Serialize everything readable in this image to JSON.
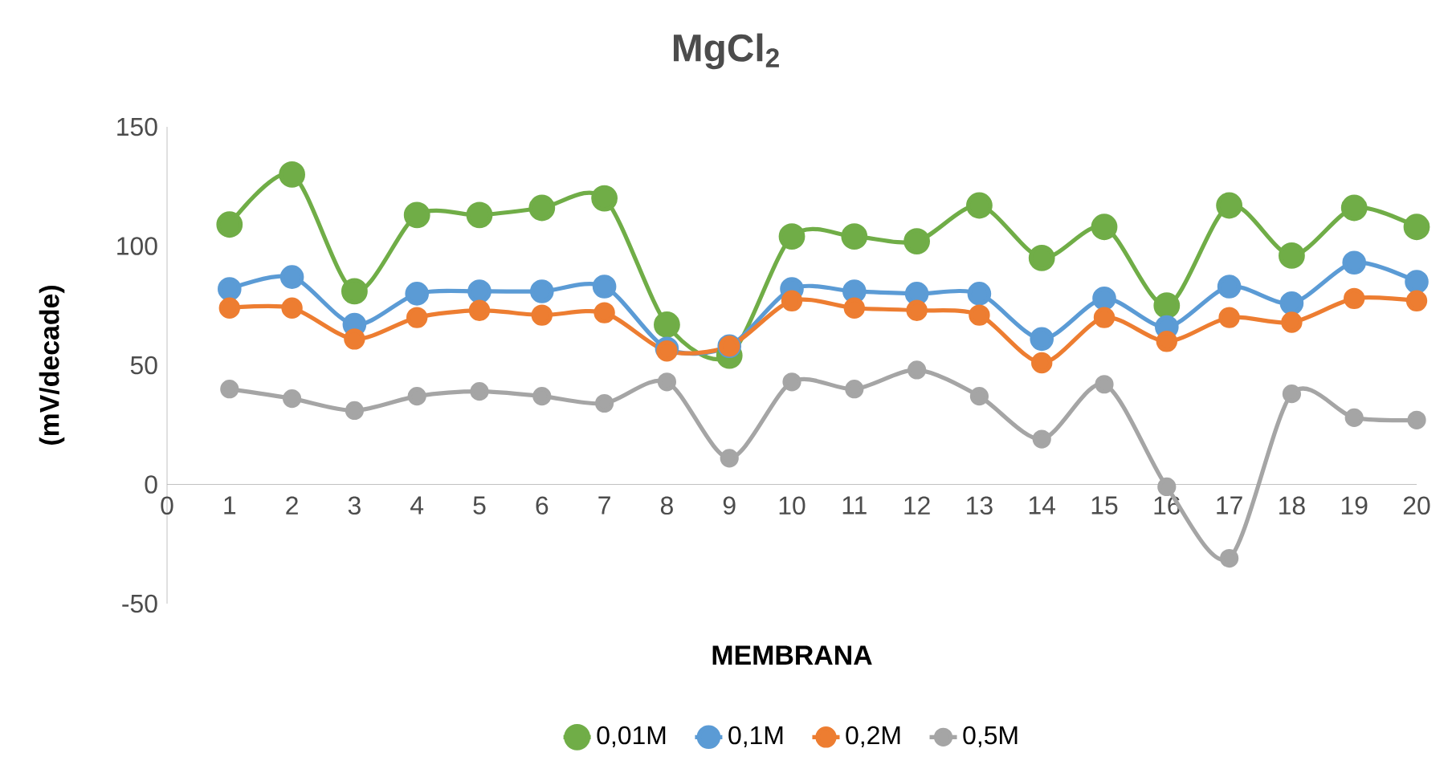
{
  "chart_data": {
    "type": "line",
    "title": "MgCl$_{2}$",
    "xlabel": "MEMBRANA",
    "ylabel": "(mV/decade)",
    "x": [
      1,
      2,
      3,
      4,
      5,
      6,
      7,
      8,
      9,
      10,
      11,
      12,
      13,
      14,
      15,
      16,
      17,
      18,
      19,
      20
    ],
    "series": [
      {
        "name": "0,01M",
        "color": "#70ad47",
        "values": [
          109,
          130,
          81,
          113,
          113,
          116,
          120,
          67,
          54,
          104,
          104,
          102,
          117,
          95,
          108,
          75,
          117,
          96,
          116,
          108
        ]
      },
      {
        "name": "0,1M",
        "color": "#5b9bd5",
        "values": [
          82,
          87,
          67,
          80,
          81,
          81,
          83,
          57,
          58,
          82,
          81,
          80,
          80,
          61,
          78,
          66,
          83,
          76,
          93,
          85
        ]
      },
      {
        "name": "0,2M",
        "color": "#ed7d31",
        "values": [
          74,
          74,
          61,
          70,
          73,
          71,
          72,
          56,
          58,
          77,
          74,
          73,
          71,
          51,
          70,
          60,
          70,
          68,
          78,
          77
        ]
      },
      {
        "name": "0,5M",
        "color": "#a5a5a5",
        "values": [
          40,
          36,
          31,
          37,
          39,
          37,
          34,
          43,
          11,
          43,
          40,
          48,
          37,
          19,
          42,
          -1,
          -31,
          38,
          28,
          27
        ]
      }
    ],
    "xlim": [
      0,
      20
    ],
    "ylim": [
      -50,
      150
    ],
    "xticks": [
      0,
      1,
      2,
      3,
      4,
      5,
      6,
      7,
      8,
      9,
      10,
      11,
      12,
      13,
      14,
      15,
      16,
      17,
      18,
      19,
      20
    ],
    "yticks": [
      -50,
      0,
      50,
      100,
      150
    ],
    "legend": "bottom",
    "marker": "circle",
    "line_style": "solid"
  }
}
